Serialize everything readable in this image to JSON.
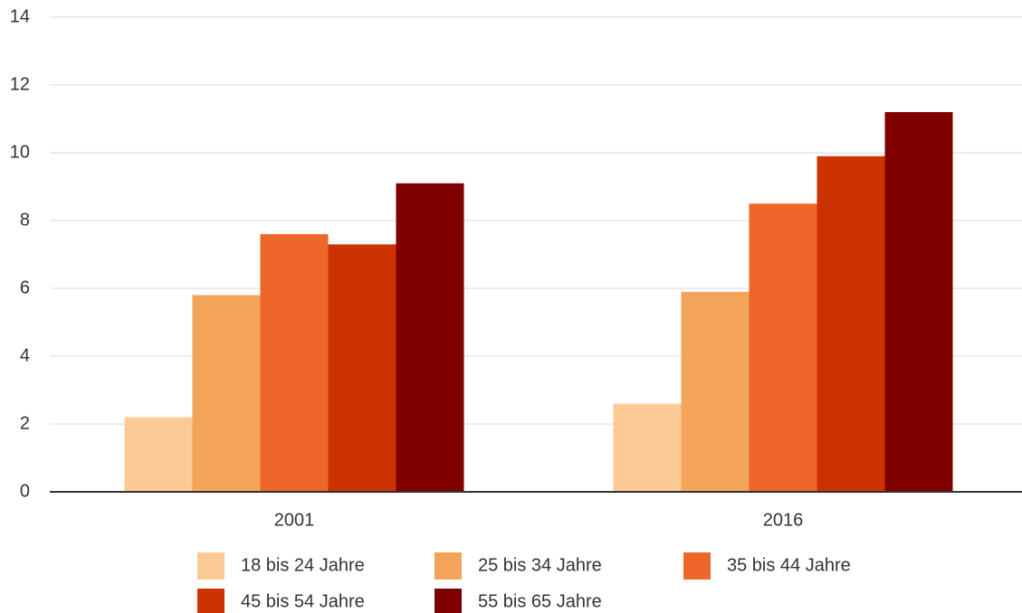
{
  "chart_data": {
    "type": "bar",
    "categories": [
      "2001",
      "2016"
    ],
    "series": [
      {
        "name": "18 bis 24 Jahre",
        "color": "#fdc994",
        "values": [
          2.2,
          2.6
        ]
      },
      {
        "name": "25 bis 34 Jahre",
        "color": "#f4a35b",
        "values": [
          5.8,
          5.9
        ]
      },
      {
        "name": "35 bis 44 Jahre",
        "color": "#ee6629",
        "values": [
          7.6,
          8.5
        ]
      },
      {
        "name": "45 bis 54 Jahre",
        "color": "#cc3300",
        "values": [
          7.3,
          9.9
        ]
      },
      {
        "name": "55 bis 65 Jahre",
        "color": "#800000",
        "values": [
          9.1,
          11.2
        ]
      }
    ],
    "ylim": [
      0,
      14
    ],
    "yticks": [
      0,
      2,
      4,
      6,
      8,
      10,
      12,
      14
    ],
    "grid": true,
    "legend": "bottom"
  }
}
